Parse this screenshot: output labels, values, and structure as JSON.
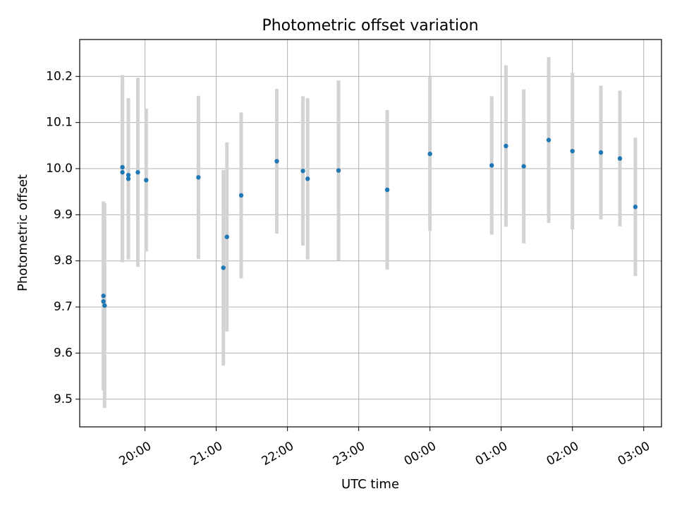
{
  "chart_data": {
    "type": "scatter",
    "title": "Photometric offset variation",
    "xlabel": "UTC time",
    "ylabel": "Photometric offset",
    "x_tick_labels": [
      "20:00",
      "21:00",
      "22:00",
      "23:00",
      "00:00",
      "01:00",
      "02:00",
      "03:00"
    ],
    "x_ticks": [
      "19:59",
      "20:59",
      "21:59",
      "22:59",
      "23:59",
      "00:59",
      "01:59",
      "02:59"
    ],
    "y_tick_labels": [
      "9.5",
      "9.6",
      "9.7",
      "9.8",
      "9.9",
      "10.0",
      "10.1",
      "10.2"
    ],
    "y_ticks": [
      9.5,
      9.6,
      9.7,
      9.8,
      9.9,
      10.0,
      10.1,
      10.2
    ],
    "xlim": [
      "19:04",
      "03:14"
    ],
    "ylim": [
      9.44,
      10.28
    ],
    "grid": true,
    "marker_color": "#1f77b4",
    "errorbar_color": "#d3d3d3",
    "points": [
      {
        "time": "19:24",
        "y": 9.724,
        "err": 0.205
      },
      {
        "time": "19:24",
        "y": 9.712,
        "err": 0.188
      },
      {
        "time": "19:25",
        "y": 9.703,
        "err": 0.222
      },
      {
        "time": "19:40",
        "y": 10.003,
        "err": 0.2
      },
      {
        "time": "19:40",
        "y": 9.992,
        "err": 0.195
      },
      {
        "time": "19:45",
        "y": 9.986,
        "err": 0.165
      },
      {
        "time": "19:45",
        "y": 9.978,
        "err": 0.175
      },
      {
        "time": "19:53",
        "y": 9.992,
        "err": 0.205
      },
      {
        "time": "20:00",
        "y": 9.975,
        "err": 0.155
      },
      {
        "time": "20:44",
        "y": 9.981,
        "err": 0.177
      },
      {
        "time": "21:05",
        "y": 9.785,
        "err": 0.212
      },
      {
        "time": "21:08",
        "y": 9.852,
        "err": 0.205
      },
      {
        "time": "21:20",
        "y": 9.942,
        "err": 0.18
      },
      {
        "time": "21:50",
        "y": 10.016,
        "err": 0.157
      },
      {
        "time": "22:12",
        "y": 9.995,
        "err": 0.162
      },
      {
        "time": "22:16",
        "y": 9.978,
        "err": 0.175
      },
      {
        "time": "22:42",
        "y": 9.996,
        "err": 0.195
      },
      {
        "time": "23:23",
        "y": 9.954,
        "err": 0.173
      },
      {
        "time": "23:59",
        "y": 10.032,
        "err": 0.167
      },
      {
        "time": "00:51",
        "y": 10.007,
        "err": 0.15
      },
      {
        "time": "01:03",
        "y": 10.049,
        "err": 0.175
      },
      {
        "time": "01:18",
        "y": 10.005,
        "err": 0.167
      },
      {
        "time": "01:39",
        "y": 10.062,
        "err": 0.18
      },
      {
        "time": "01:59",
        "y": 10.038,
        "err": 0.17
      },
      {
        "time": "02:23",
        "y": 10.035,
        "err": 0.145
      },
      {
        "time": "02:39",
        "y": 10.022,
        "err": 0.147
      },
      {
        "time": "02:52",
        "y": 9.917,
        "err": 0.15
      }
    ]
  }
}
